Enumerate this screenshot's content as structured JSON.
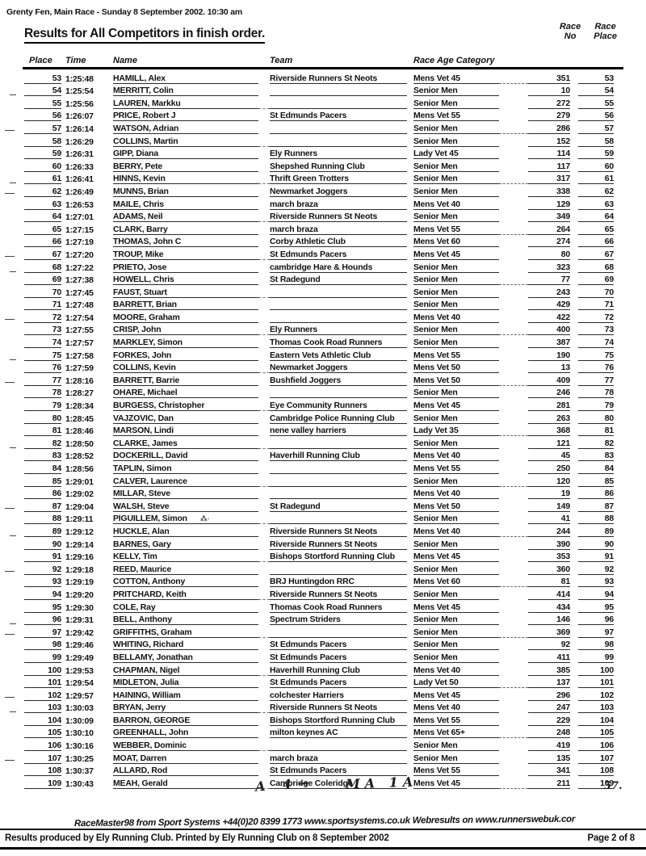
{
  "page": {
    "meta_line": "Grenty Fen, Main Race - Sunday 8 September 2002. 10:30 am",
    "title": "Results for All Competitors in finish order.",
    "footer_system_line": "RaceMaster98 from Sport Systems +44(0)20 8399 1773 www.sportsystems.co.uk Webresults on www.runnerswebuk.cor",
    "footer_produced": "Results produced by Ely Running Club. Printed by Ely Running Club on 8 September 2002",
    "footer_page": "Page 2 of 8"
  },
  "annotations": {
    "hand_left": "A 4→",
    "hand_middle": "MA 1A",
    "hand_right": "57."
  },
  "table": {
    "headers": {
      "place": "Place",
      "time": "Time",
      "name": "Name",
      "team": "Team",
      "category": "Race Age Category",
      "race_no_line1": "Race",
      "race_no_line2": "No",
      "race_place_line1": "Race",
      "race_place_line2": "Place"
    },
    "rows": [
      {
        "place": "53",
        "time": "1:25:48",
        "name": "HAMILL, Alex",
        "team": "Riverside Runners St Neots",
        "category": "Mens Vet 45",
        "race_no": "351",
        "race_place": "53",
        "name_mark": ""
      },
      {
        "place": "54",
        "time": "1:25:54",
        "name": "MERRITT, Colin",
        "team": "",
        "category": "Senior Men",
        "race_no": "10",
        "race_place": "54",
        "name_mark": ""
      },
      {
        "place": "55",
        "time": "1:25:56",
        "name": "LAUREN, Markku",
        "team": "",
        "category": "Senior Men",
        "race_no": "272",
        "race_place": "55",
        "name_mark": ""
      },
      {
        "place": "56",
        "time": "1:26:07",
        "name": "PRICE, Robert J",
        "team": "St Edmunds Pacers",
        "category": "Mens Vet 55",
        "race_no": "279",
        "race_place": "56",
        "name_mark": ""
      },
      {
        "place": "57",
        "time": "1:26:14",
        "name": "WATSON, Adrian",
        "team": "",
        "category": "Senior Men",
        "race_no": "286",
        "race_place": "57",
        "name_mark": ""
      },
      {
        "place": "58",
        "time": "1:26:29",
        "name": "COLLINS, Martin",
        "team": "",
        "category": "Senior Men",
        "race_no": "152",
        "race_place": "58",
        "name_mark": ""
      },
      {
        "place": "59",
        "time": "1:26:31",
        "name": "GIPP, Diana",
        "team": "Ely Runners",
        "category": "Lady Vet 45",
        "race_no": "114",
        "race_place": "59",
        "name_mark": ""
      },
      {
        "place": "60",
        "time": "1:26:33",
        "name": "BERRY, Pete",
        "team": "Shepshed Running Club",
        "category": "Senior Men",
        "race_no": "117",
        "race_place": "60",
        "name_mark": ""
      },
      {
        "place": "61",
        "time": "1:26:41",
        "name": "HINNS, Kevin",
        "team": "Thrift Green Trotters",
        "category": "Senior Men",
        "race_no": "317",
        "race_place": "61",
        "name_mark": ""
      },
      {
        "place": "62",
        "time": "1:26:49",
        "name": "MUNNS, Brian",
        "team": "Newmarket Joggers",
        "category": "Senior Men",
        "race_no": "338",
        "race_place": "62",
        "name_mark": ""
      },
      {
        "place": "63",
        "time": "1:26:53",
        "name": "MAILE, Chris",
        "team": "march braza",
        "category": "Mens Vet 40",
        "race_no": "129",
        "race_place": "63",
        "name_mark": ""
      },
      {
        "place": "64",
        "time": "1:27:01",
        "name": "ADAMS, Neil",
        "team": "Riverside Runners St Neots",
        "category": "Senior Men",
        "race_no": "349",
        "race_place": "64",
        "name_mark": ""
      },
      {
        "place": "65",
        "time": "1:27:15",
        "name": "CLARK, Barry",
        "team": "march braza",
        "category": "Mens Vet 55",
        "race_no": "264",
        "race_place": "65",
        "name_mark": ""
      },
      {
        "place": "66",
        "time": "1:27:19",
        "name": "THOMAS, John C",
        "team": "Corby Athletic Club",
        "category": "Mens Vet 60",
        "race_no": "274",
        "race_place": "66",
        "name_mark": ""
      },
      {
        "place": "67",
        "time": "1:27:20",
        "name": "TROUP, Mike",
        "team": "St Edmunds Pacers",
        "category": "Mens Vet 45",
        "race_no": "80",
        "race_place": "67",
        "name_mark": ""
      },
      {
        "place": "68",
        "time": "1:27:22",
        "name": "PRIETO, Jose",
        "team": "cambridge Hare & Hounds",
        "category": "Senior Men",
        "race_no": "323",
        "race_place": "68",
        "name_mark": ""
      },
      {
        "place": "69",
        "time": "1:27:38",
        "name": "HOWELL, Chris",
        "team": "St Radegund",
        "category": "Senior Men",
        "race_no": "77",
        "race_place": "69",
        "name_mark": ""
      },
      {
        "place": "70",
        "time": "1:27:45",
        "name": "FAUST, Stuart",
        "team": "",
        "category": "Senior Men",
        "race_no": "243",
        "race_place": "70",
        "name_mark": ""
      },
      {
        "place": "71",
        "time": "1:27:48",
        "name": "BARRETT, Brian",
        "team": "",
        "category": "Senior Men",
        "race_no": "429",
        "race_place": "71",
        "name_mark": ""
      },
      {
        "place": "72",
        "time": "1:27:54",
        "name": "MOORE, Graham",
        "team": "",
        "category": "Mens Vet 40",
        "race_no": "422",
        "race_place": "72",
        "name_mark": ""
      },
      {
        "place": "73",
        "time": "1:27:55",
        "name": "CRISP, John",
        "team": "Ely Runners",
        "category": "Senior Men",
        "race_no": "400",
        "race_place": "73",
        "name_mark": ""
      },
      {
        "place": "74",
        "time": "1:27:57",
        "name": "MARKLEY, Simon",
        "team": "Thomas Cook Road Runners",
        "category": "Senior Men",
        "race_no": "387",
        "race_place": "74",
        "name_mark": ""
      },
      {
        "place": "75",
        "time": "1:27:58",
        "name": "FORKES, John",
        "team": "Eastern Vets Athletic Club",
        "category": "Mens Vet 55",
        "race_no": "190",
        "race_place": "75",
        "name_mark": ""
      },
      {
        "place": "76",
        "time": "1:27:59",
        "name": "COLLINS, Kevin",
        "team": "Newmarket Joggers",
        "category": "Mens Vet 50",
        "race_no": "13",
        "race_place": "76",
        "name_mark": ""
      },
      {
        "place": "77",
        "time": "1:28:16",
        "name": "BARRETT, Barrie",
        "team": "Bushfield Joggers",
        "category": "Mens Vet 50",
        "race_no": "409",
        "race_place": "77",
        "name_mark": ""
      },
      {
        "place": "78",
        "time": "1:28:27",
        "name": "OHARE, Michael",
        "team": "",
        "category": "Senior Men",
        "race_no": "246",
        "race_place": "78",
        "name_mark": ""
      },
      {
        "place": "79",
        "time": "1:28:34",
        "name": "BURGESS, Christopher",
        "team": "Eye Community Runners",
        "category": "Mens Vet 45",
        "race_no": "281",
        "race_place": "79",
        "name_mark": ""
      },
      {
        "place": "80",
        "time": "1:28:45",
        "name": "VAJZOVIC, Dan",
        "team": "Cambridge Police Running Club",
        "category": "Senior Men",
        "race_no": "263",
        "race_place": "80",
        "name_mark": ""
      },
      {
        "place": "81",
        "time": "1:28:46",
        "name": "MARSON, Lindi",
        "team": "nene valley harriers",
        "category": "Lady Vet 35",
        "race_no": "368",
        "race_place": "81",
        "name_mark": ""
      },
      {
        "place": "82",
        "time": "1:28:50",
        "name": "CLARKE, James",
        "team": "",
        "category": "Senior Men",
        "race_no": "121",
        "race_place": "82",
        "name_mark": ""
      },
      {
        "place": "83",
        "time": "1:28:52",
        "name": "DOCKERILL, David",
        "team": "Haverhill Running Club",
        "category": "Mens Vet 40",
        "race_no": "45",
        "race_place": "83",
        "name_mark": ""
      },
      {
        "place": "84",
        "time": "1:28:56",
        "name": "TAPLIN, Simon",
        "team": "",
        "category": "Mens Vet 55",
        "race_no": "250",
        "race_place": "84",
        "name_mark": ""
      },
      {
        "place": "85",
        "time": "1:29:01",
        "name": "CALVER, Laurence",
        "team": "",
        "category": "Senior Men",
        "race_no": "120",
        "race_place": "85",
        "name_mark": ""
      },
      {
        "place": "86",
        "time": "1:29:02",
        "name": "MILLAR, Steve",
        "team": "",
        "category": "Mens Vet 40",
        "race_no": "19",
        "race_place": "86",
        "name_mark": ""
      },
      {
        "place": "87",
        "time": "1:29:04",
        "name": "WALSH, Steve",
        "team": "St Radegund",
        "category": "Mens Vet 50",
        "race_no": "149",
        "race_place": "87",
        "name_mark": ""
      },
      {
        "place": "88",
        "time": "1:29:11",
        "name": "PIGUILLEM, Simon",
        "team": "",
        "category": "Senior Men",
        "race_no": "41",
        "race_place": "88",
        "name_mark": "⁂·"
      },
      {
        "place": "89",
        "time": "1:29:12",
        "name": "HUCKLE, Alan",
        "team": "Riverside Runners St Neots",
        "category": "Mens Vet 40",
        "race_no": "244",
        "race_place": "89",
        "name_mark": ""
      },
      {
        "place": "90",
        "time": "1:29:14",
        "name": "BARNES, Gary",
        "team": "Riverside Runners St Neots",
        "category": "Senior Men",
        "race_no": "390",
        "race_place": "90",
        "name_mark": ""
      },
      {
        "place": "91",
        "time": "1:29:16",
        "name": "KELLY, Tim",
        "team": "Bishops Stortford Running Club",
        "category": "Mens Vet 45",
        "race_no": "353",
        "race_place": "91",
        "name_mark": ""
      },
      {
        "place": "92",
        "time": "1:29:18",
        "name": "REED, Maurice",
        "team": "",
        "category": "Senior Men",
        "race_no": "360",
        "race_place": "92",
        "name_mark": ""
      },
      {
        "place": "93",
        "time": "1:29:19",
        "name": "COTTON, Anthony",
        "team": "BRJ Huntingdon RRC",
        "category": "Mens Vet 60",
        "race_no": "81",
        "race_place": "93",
        "name_mark": ""
      },
      {
        "place": "94",
        "time": "1:29:20",
        "name": "PRITCHARD, Keith",
        "team": "Riverside Runners St Neots",
        "category": "Senior Men",
        "race_no": "414",
        "race_place": "94",
        "name_mark": ""
      },
      {
        "place": "95",
        "time": "1:29:30",
        "name": "COLE, Ray",
        "team": "Thomas Cook Road Runners",
        "category": "Mens Vet 45",
        "race_no": "434",
        "race_place": "95",
        "name_mark": ""
      },
      {
        "place": "96",
        "time": "1:29:31",
        "name": "BELL, Anthony",
        "team": "Spectrum Striders",
        "category": "Senior Men",
        "race_no": "146",
        "race_place": "96",
        "name_mark": ""
      },
      {
        "place": "97",
        "time": "1:29:42",
        "name": "GRIFFITHS, Graham",
        "team": "",
        "category": "Senior Men",
        "race_no": "369",
        "race_place": "97",
        "name_mark": ""
      },
      {
        "place": "98",
        "time": "1:29:46",
        "name": "WHITING, Richard",
        "team": "St Edmunds Pacers",
        "category": "Senior Men",
        "race_no": "92",
        "race_place": "98",
        "name_mark": ""
      },
      {
        "place": "99",
        "time": "1:29:49",
        "name": "BELLAMY, Jonathan",
        "team": "St Edmunds Pacers",
        "category": "Senior Men",
        "race_no": "411",
        "race_place": "99",
        "name_mark": ""
      },
      {
        "place": "100",
        "time": "1:29:53",
        "name": "CHAPMAN, Nigel",
        "team": "Haverhill Running Club",
        "category": "Mens Vet 40",
        "race_no": "385",
        "race_place": "100",
        "name_mark": ""
      },
      {
        "place": "101",
        "time": "1:29:54",
        "name": "MIDLETON, Julia",
        "team": "St Edmunds Pacers",
        "category": "Lady Vet 50",
        "race_no": "137",
        "race_place": "101",
        "name_mark": ""
      },
      {
        "place": "102",
        "time": "1:29:57",
        "name": "HAINING, William",
        "team": "colchester Harriers",
        "category": "Mens Vet 45",
        "race_no": "296",
        "race_place": "102",
        "name_mark": ""
      },
      {
        "place": "103",
        "time": "1:30:03",
        "name": "BRYAN, Jerry",
        "team": "Riverside Runners St Neots",
        "category": "Mens Vet 40",
        "race_no": "247",
        "race_place": "103",
        "name_mark": ""
      },
      {
        "place": "104",
        "time": "1:30:09",
        "name": "BARRON, GEORGE",
        "team": "Bishops Stortford Running Club",
        "category": "Mens Vet 55",
        "race_no": "229",
        "race_place": "104",
        "name_mark": ""
      },
      {
        "place": "105",
        "time": "1:30:10",
        "name": "GREENHALL, John",
        "team": "milton keynes AC",
        "category": "Mens Vet 65+",
        "race_no": "248",
        "race_place": "105",
        "name_mark": ""
      },
      {
        "place": "106",
        "time": "1:30:16",
        "name": "WEBBER, Dominic",
        "team": "",
        "category": "Senior Men",
        "race_no": "419",
        "race_place": "106",
        "name_mark": ""
      },
      {
        "place": "107",
        "time": "1:30:25",
        "name": "MOAT, Darren",
        "team": "march braza",
        "category": "Senior Men",
        "race_no": "135",
        "race_place": "107",
        "name_mark": ""
      },
      {
        "place": "108",
        "time": "1:30:37",
        "name": "ALLARD, Rod",
        "team": "St Edmunds Pacers",
        "category": "Mens Vet 55",
        "race_no": "341",
        "race_place": "108",
        "name_mark": ""
      },
      {
        "place": "109",
        "time": "1:30:43",
        "name": "MEAH, Gerald",
        "team": "Cambridge Coleridge",
        "category": "Mens Vet 45",
        "race_no": "211",
        "race_place": "109",
        "name_mark": ""
      }
    ]
  }
}
